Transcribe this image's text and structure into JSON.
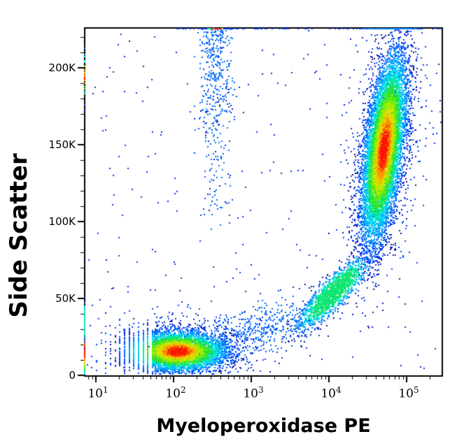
{
  "figure": {
    "background_color": "#ffffff",
    "frame_color": "#000000",
    "x_axis": {
      "label": "Myeloperoxidase PE",
      "scale": "log10",
      "tick_labels": [
        {
          "base": "10",
          "exp": "1"
        },
        {
          "base": "10",
          "exp": "2"
        },
        {
          "base": "10",
          "exp": "3"
        },
        {
          "base": "10",
          "exp": "4"
        },
        {
          "base": "10",
          "exp": "5"
        }
      ],
      "tick_values": [
        10,
        100,
        1000,
        10000,
        100000
      ],
      "range": [
        7.1,
        275000
      ]
    },
    "y_axis": {
      "label": "Side Scatter",
      "scale": "linear",
      "tick_labels": [
        "0",
        "50K",
        "100K",
        "150K",
        "200K"
      ],
      "tick_values": [
        0,
        50000,
        100000,
        150000,
        200000
      ],
      "minor_tick_step": 10000,
      "range": [
        0,
        226400
      ]
    },
    "colormap": {
      "name": "jet-density",
      "stops": [
        [
          0.0,
          16,
          16,
          168
        ],
        [
          0.14,
          0,
          70,
          252
        ],
        [
          0.33,
          0,
          160,
          255
        ],
        [
          0.47,
          0,
          235,
          235
        ],
        [
          0.6,
          30,
          225,
          40
        ],
        [
          0.72,
          150,
          240,
          0
        ],
        [
          0.82,
          240,
          220,
          0
        ],
        [
          0.91,
          255,
          140,
          0
        ],
        [
          1.0,
          250,
          20,
          0
        ]
      ]
    }
  },
  "chart_data": {
    "type": "scatter",
    "subtype": "flow-cytometry pseudocolor density dot plot",
    "title": "",
    "xlabel": "Myeloperoxidase PE",
    "ylabel": "Side Scatter",
    "x_scale": "log10",
    "x_range": [
      7.1,
      275000
    ],
    "y_range": [
      0,
      226400
    ],
    "grid": false,
    "legend": false,
    "populations": [
      {
        "name": "lymphocyte-halo",
        "kind": "gauss2d",
        "n": 850,
        "mean_log10_x": 2.05,
        "sd_log10_x": 0.48,
        "mean_y": 17000,
        "sd_y": 11500,
        "tilt_dlogx_dy": 0,
        "color_cap": 0.13,
        "snap_striations": true,
        "description": "sparse blue fringe around MPO-negative lymphocytes"
      },
      {
        "name": "granulocyte-halo",
        "kind": "gauss2d",
        "n": 900,
        "mean_log10_x": 4.7,
        "sd_log10_x": 0.22,
        "mean_y": 148000,
        "sd_y": 40000,
        "tilt_dlogx_dy": 2.5e-06,
        "color_cap": 0.13,
        "description": "sparse blue fringe around MPO-positive granulocytes"
      },
      {
        "name": "background-scatter",
        "kind": "uniform",
        "n": 270,
        "x_log_range": [
          0.9,
          5.44
        ],
        "color_cap": 0.09,
        "description": "random sparse events over whole plot"
      },
      {
        "name": "monocyte-bridge",
        "kind": "gauss2d",
        "n": 500,
        "mean_log10_x": 3.1,
        "sd_log10_x": 0.45,
        "mean_y": 30000,
        "sd_y": 8000,
        "rise_dy_per_decade": 16000,
        "color_cap": 0.2,
        "description": "diffuse blue band rising from lymphocytes toward intermediate cluster"
      },
      {
        "name": "debris-column",
        "kind": "column",
        "n": 430,
        "mean_log10_x": 2.53,
        "sd_log10_x": 0.1,
        "sd_y_from_top": 52000,
        "y_min": 95000,
        "color_cap": 0.22,
        "description": "vertical column of blue events near x=300 from top of scale down to ~100K"
      },
      {
        "name": "monocytes-intermediate",
        "kind": "gauss2d",
        "n": 1700,
        "mean_log10_x": 4.05,
        "sd_log10_x": 0.11,
        "mean_y": 54000,
        "sd_y": 11000,
        "tilt_dlogx_dy": 1.67e-05,
        "color_cap": 0.55,
        "description": "intermediate MPO-dim population ~10^4 / SSC 55K, cyan core"
      },
      {
        "name": "lymphocytes-mpo-negative",
        "kind": "gauss2d",
        "n": 5200,
        "mean_log10_x": 2.05,
        "sd_log10_x": 0.3,
        "mean_y": 16000,
        "sd_y": 6200,
        "tilt_dlogx_dy": 0,
        "color_cap": 1.0,
        "snap_striations": true,
        "description": "MPO-negative low-SSC population ~10^2 / SSC 15K, red-orange core, striated at low x"
      },
      {
        "name": "granulocytes-mpo-positive",
        "kind": "gauss2d",
        "n": 9500,
        "mean_log10_x": 4.7,
        "sd_log10_x": 0.115,
        "mean_y": 148000,
        "sd_y": 29000,
        "tilt_dlogx_dy": 2.5e-06,
        "color_cap": 1.0,
        "description": "MPO-bright high-SSC population ~5x10^4 / SSC 150K, tilted ellipse, red-orange core"
      },
      {
        "name": "left-axis-pileup",
        "kind": "pileup-left",
        "n": 620,
        "mean_y": 16000,
        "sd_y": 9000,
        "color_cap": 1.0,
        "description": "events piled on x-axis minimum, red core SSC 8-30K"
      },
      {
        "name": "left-pileup-upper",
        "kind": "pileup-left",
        "n": 130,
        "mean_y": 36000,
        "sd_y": 5500,
        "color_cap": 0.5,
        "description": "cyan-green segment of left-edge pileup SSC 30-45K"
      },
      {
        "name": "left-pileup-high",
        "kind": "pileup-left",
        "n": 28,
        "mean_y": 195000,
        "sd_y": 8000,
        "color_cap": 1.0,
        "description": "small red dash on left border near SSC 195K"
      },
      {
        "name": "debris-top-pileup",
        "kind": "pileup-top",
        "n": 430,
        "mean_log10_x": 2.56,
        "sd_log10_x": 0.08,
        "color_cap": 1.0,
        "description": "rainbow stripe on top border above debris column"
      },
      {
        "name": "top-edge-scatter",
        "kind": "uniform-top",
        "n": 95,
        "x_log_range": [
          2.0,
          5.44
        ],
        "color_cap": 0.1,
        "description": "sparse blue dashes along top border"
      },
      {
        "name": "top-right-pileup",
        "kind": "pileup-top",
        "n": 150,
        "mean_log10_x": 4.78,
        "sd_log10_x": 0.18,
        "color_cap": 0.28,
        "description": "dense blue stripe on top border above granulocytes"
      }
    ]
  }
}
